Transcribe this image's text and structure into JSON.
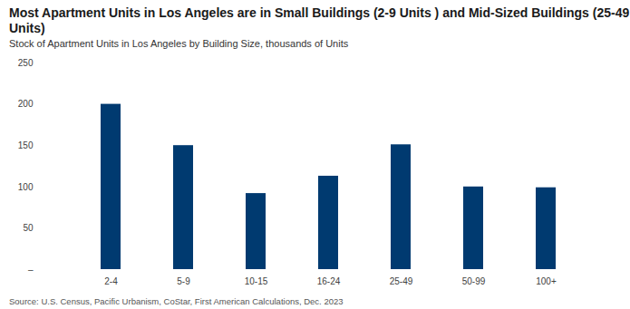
{
  "chart_data": {
    "type": "bar",
    "title": "Most Apartment Units in Los Angeles are in Small Buildings (2-9 Units ) and Mid-Sized Buildings (25-49 Units)",
    "subtitle": "Stock of Apartment Units in Los Angeles by Building Size, thousands of Units",
    "caption": "Source: U.S. Census, Pacific Urbanism, CoStar, First American Calculations, Dec. 2023",
    "categories": [
      "2-4",
      "5-9",
      "10-15",
      "16-24",
      "25-49",
      "50-99",
      "100+"
    ],
    "values": [
      200,
      150,
      92,
      113,
      151,
      100,
      99
    ],
    "color": "#003a70",
    "ylim": [
      0,
      250
    ],
    "yticks": [
      {
        "value": 0,
        "label": "–"
      },
      50,
      100,
      150,
      200,
      250
    ],
    "grid": false
  }
}
